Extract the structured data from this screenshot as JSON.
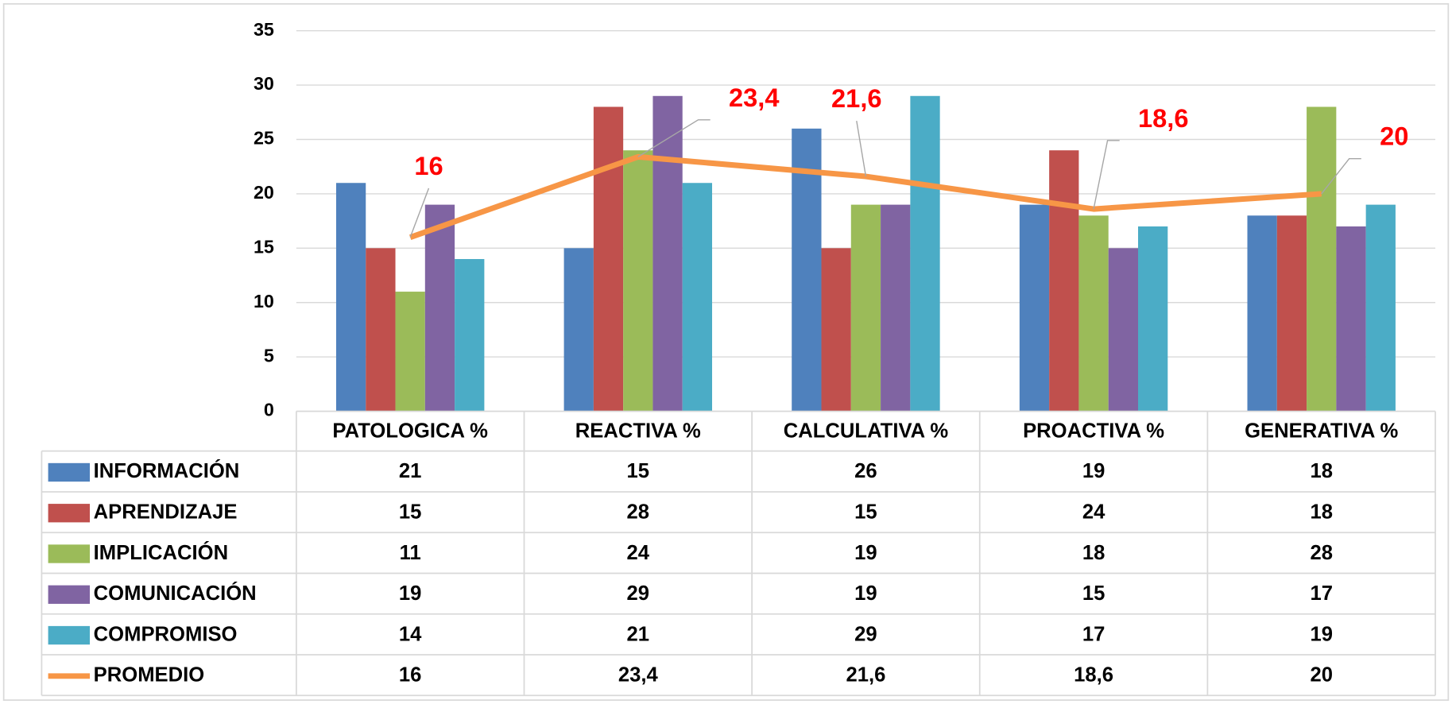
{
  "chart_data": {
    "type": "bar",
    "categories": [
      "PATOLOGICA %",
      "REACTIVA %",
      "CALCULATIVA %",
      "PROACTIVA %",
      "GENERATIVA %"
    ],
    "series": [
      {
        "name": "INFORMACIÓN",
        "color": "#4f81bd",
        "values": [
          21,
          15,
          26,
          19,
          18
        ]
      },
      {
        "name": "APRENDIZAJE",
        "color": "#c0504d",
        "values": [
          15,
          28,
          15,
          24,
          18
        ]
      },
      {
        "name": "IMPLICACIÓN",
        "color": "#9bbb59",
        "values": [
          11,
          24,
          19,
          18,
          28
        ]
      },
      {
        "name": "COMUNICACIÓN",
        "color": "#8064a2",
        "values": [
          19,
          29,
          19,
          15,
          17
        ]
      },
      {
        "name": "COMPROMISO",
        "color": "#4bacc6",
        "values": [
          14,
          21,
          29,
          17,
          19
        ]
      },
      {
        "name": "PROMEDIO",
        "color": "#f79646",
        "type": "line",
        "values": [
          16,
          23.4,
          21.6,
          18.6,
          20
        ],
        "value_labels": [
          "16",
          "23,4",
          "21,6",
          "18,6",
          "20"
        ],
        "label_color": "#ff0000"
      }
    ],
    "ylim": [
      0,
      35
    ],
    "yticks": [
      0,
      5,
      10,
      15,
      20,
      25,
      30,
      35
    ],
    "grid": true,
    "data_table": true
  }
}
